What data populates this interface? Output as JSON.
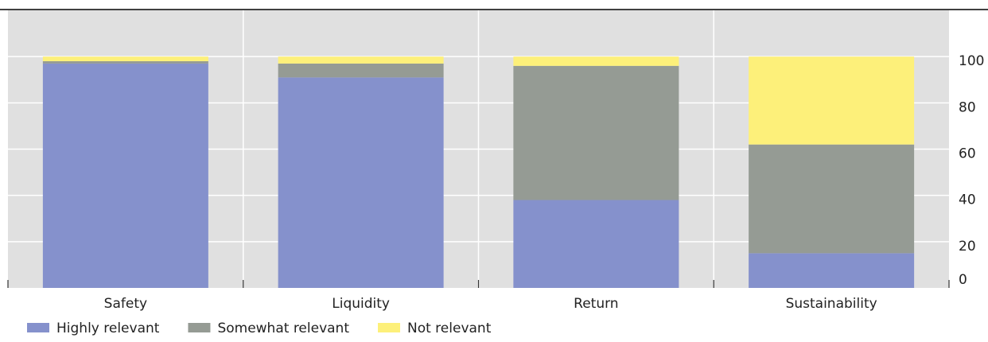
{
  "chart_data": {
    "type": "stacked_bar",
    "categories": [
      "Safety",
      "Liquidity",
      "Return",
      "Sustainability"
    ],
    "series": [
      {
        "name": "Highly relevant",
        "color": "#8591cc",
        "values": [
          97,
          91,
          38,
          15
        ]
      },
      {
        "name": "Somewhat relevant",
        "color": "#959b94",
        "values": [
          1,
          6,
          58,
          47
        ]
      },
      {
        "name": "Not relevant",
        "color": "#fdf07a",
        "values": [
          2,
          3,
          4,
          38
        ]
      }
    ],
    "ylim": [
      0,
      120
    ],
    "yticks": [
      0,
      20,
      40,
      60,
      80,
      100
    ],
    "grid": true,
    "legend": "bottom"
  }
}
